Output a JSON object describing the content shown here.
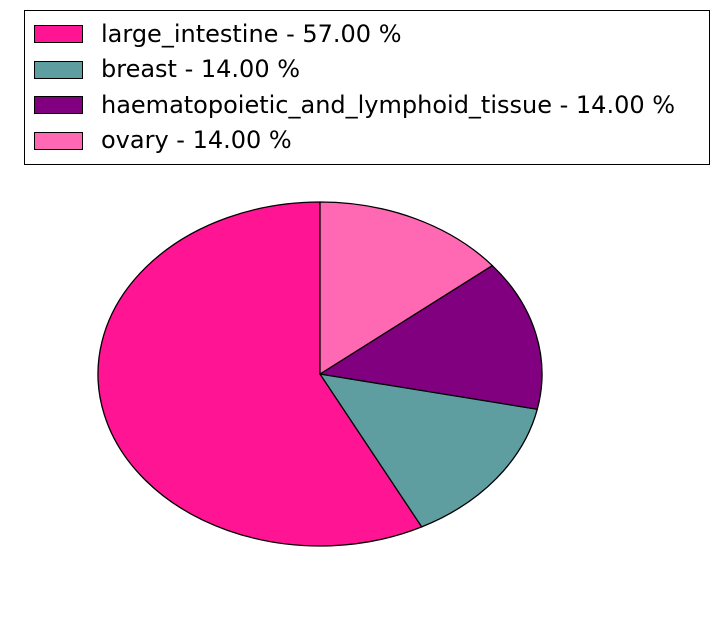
{
  "legend": {
    "items": [
      {
        "label": "large_intestine - 57.00 %",
        "color": "#FF1493"
      },
      {
        "label": "breast - 14.00 %",
        "color": "#5F9EA0"
      },
      {
        "label": "haematopoietic_and_lymphoid_tissue - 14.00 %",
        "color": "#800080"
      },
      {
        "label": "ovary - 14.00 %",
        "color": "#FF69B4"
      }
    ]
  },
  "chart_data": {
    "type": "pie",
    "categories": [
      "large_intestine",
      "breast",
      "haematopoietic_and_lymphoid_tissue",
      "ovary"
    ],
    "values": [
      57.0,
      14.0,
      14.0,
      14.0
    ],
    "value_unit": "%",
    "colors": [
      "#FF1493",
      "#5F9EA0",
      "#800080",
      "#FF69B4"
    ],
    "edge_color": "#000000",
    "start_angle": 90,
    "counterclock": true,
    "legend_position": "upper left",
    "legend_labels": [
      "large_intestine - 57.00 %",
      "breast - 14.00 %",
      "haematopoietic_and_lymphoid_tissue - 14.00 %",
      "ovary - 14.00 %"
    ],
    "title": "",
    "background": "#ffffff"
  }
}
